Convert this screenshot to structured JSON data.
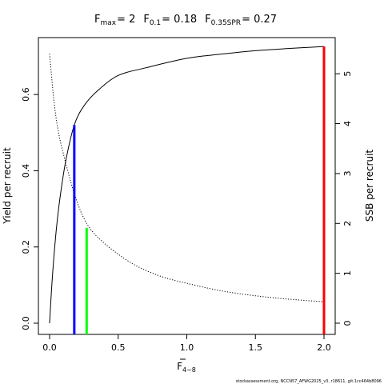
{
  "header": {
    "title_parts": [
      {
        "main": "F",
        "sub": "max",
        "eq": "= 2"
      },
      {
        "main": "F",
        "sub": "0.1",
        "eq": "= 0.18"
      },
      {
        "main": "F",
        "sub": "0.35SPR",
        "eq": "= 0.27"
      }
    ]
  },
  "footer": {
    "credit": "stockassessment.org, NCCN57_AFWG2025_v3, r18611, git:1cc464b8096"
  },
  "colors": {
    "ypr_curve": "#000000",
    "spr_curve": "#000000",
    "fmax_line": "#ff0000",
    "f01_line": "#0000ff",
    "f035_line": "#00ff00"
  },
  "chart_data": {
    "type": "line",
    "xlabel_main": "F",
    "xlabel_sub": "4−8",
    "ylabel": "Yield per recruit",
    "y2label": "SSB per recruit",
    "xlim": [
      0,
      2
    ],
    "ylim": [
      0,
      0.72
    ],
    "y2lim": [
      0,
      5.5
    ],
    "x_ticks": [
      "0.0",
      "0.5",
      "1.0",
      "1.5",
      "2.0"
    ],
    "y_ticks": [
      "0.0",
      "0.2",
      "0.4",
      "0.6"
    ],
    "y2_ticks": [
      "0",
      "1",
      "2",
      "3",
      "4",
      "5"
    ],
    "grid": false,
    "series": [
      {
        "axis": "left",
        "style": "solid",
        "x": [
          0,
          0.02,
          0.05,
          0.08,
          0.12,
          0.18,
          0.25,
          0.35,
          0.5,
          0.7,
          1.0,
          1.25,
          1.5,
          1.75,
          2.0
        ],
        "y": [
          0,
          0.12,
          0.25,
          0.34,
          0.43,
          0.52,
          0.57,
          0.61,
          0.65,
          0.67,
          0.695,
          0.706,
          0.715,
          0.721,
          0.726
        ]
      },
      {
        "axis": "right",
        "style": "dotted",
        "x": [
          0,
          0.03,
          0.06,
          0.1,
          0.18,
          0.27,
          0.4,
          0.6,
          0.8,
          1.0,
          1.25,
          1.5,
          1.75,
          2.0
        ],
        "y": [
          5.4,
          4.5,
          3.9,
          3.4,
          2.6,
          2.0,
          1.6,
          1.2,
          0.95,
          0.8,
          0.65,
          0.55,
          0.48,
          0.43
        ]
      }
    ],
    "reference_lines": [
      {
        "label": "F0.1",
        "x": 0.18,
        "y": 0.52,
        "color": "#0000ff"
      },
      {
        "label": "F0.35SPR",
        "x": 0.27,
        "y": 0.25,
        "color": "#00ff00"
      },
      {
        "label": "Fmax",
        "x": 2.0,
        "y": 0.726,
        "color": "#ff0000"
      }
    ]
  }
}
